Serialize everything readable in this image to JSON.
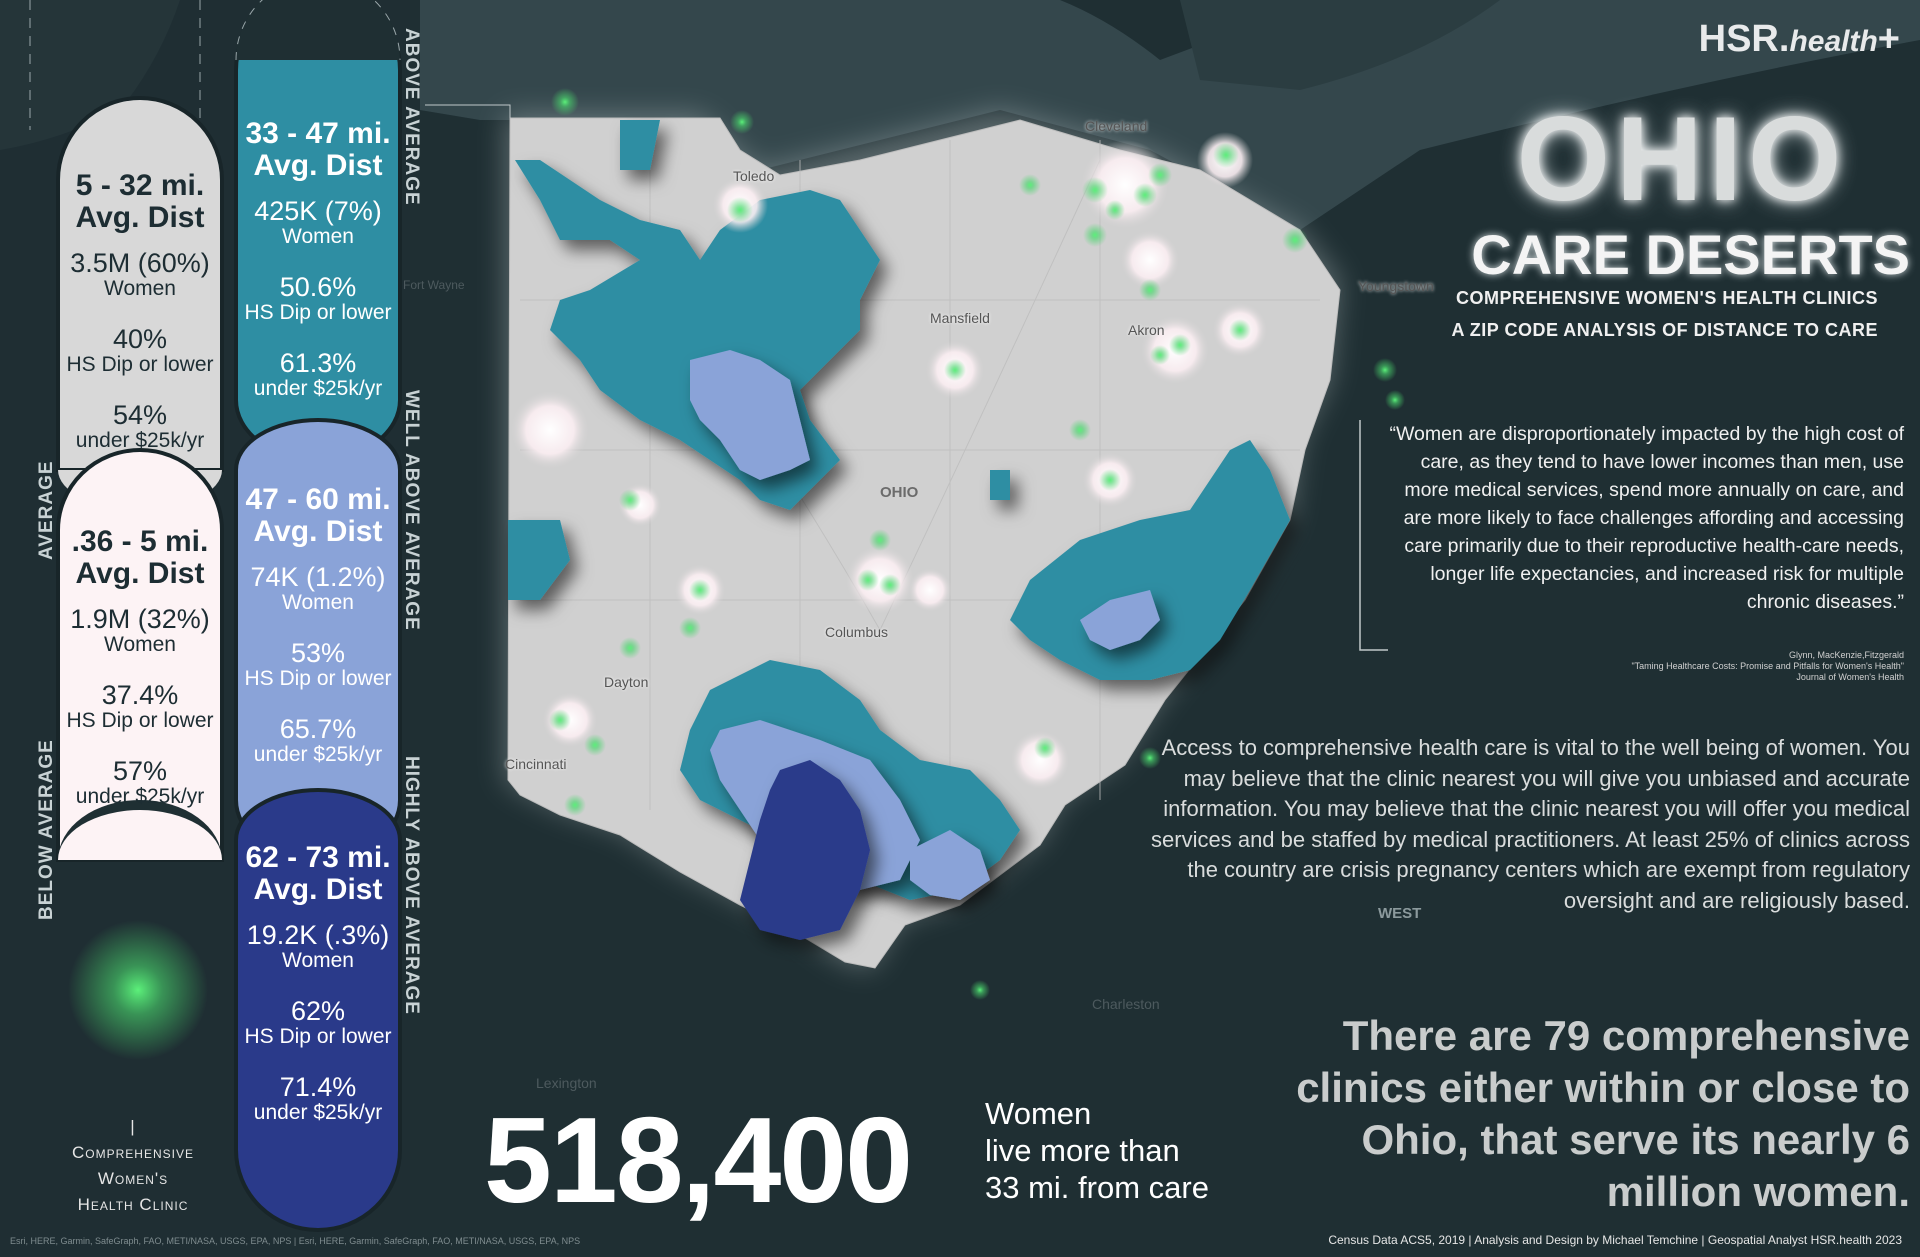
{
  "brand": {
    "name": "HSR.",
    "suffix": "health",
    "plus": "+"
  },
  "title": {
    "state": "OHIO",
    "heading": "CARE DESERTS",
    "sub1": "COMPREHENSIVE WOMEN'S HEALTH CLINICS",
    "sub2": "A ZIP CODE ANALYSIS OF DISTANCE TO CARE"
  },
  "legend": {
    "tiers": [
      {
        "range": "5 - 32 mi.",
        "dist": "Avg. Dist",
        "women": "3.5M (60%)",
        "women_label": "Women",
        "hs": "40%",
        "hs_label": "HS Dip or lower",
        "income": "54%",
        "income_label": "under $25k/yr"
      },
      {
        "range": ".36 - 5 mi.",
        "dist": "Avg. Dist",
        "women": "1.9M (32%)",
        "women_label": "Women",
        "hs": "37.4%",
        "hs_label": "HS Dip or lower",
        "income": "57%",
        "income_label": "under $25k/yr"
      },
      {
        "range": "33 - 47 mi.",
        "dist": "Avg. Dist",
        "women": "425K (7%)",
        "women_label": "Women",
        "hs": "50.6%",
        "hs_label": "HS Dip or lower",
        "income": "61.3%",
        "income_label": "under $25k/yr"
      },
      {
        "range": "47 - 60 mi.",
        "dist": "Avg. Dist",
        "women": "74K (1.2%)",
        "women_label": "Women",
        "hs": "53%",
        "hs_label": "HS Dip or lower",
        "income": "65.7%",
        "income_label": "under $25k/yr"
      },
      {
        "range": "62 - 73 mi.",
        "dist": "Avg. Dist",
        "women": "19.2K (.3%)",
        "women_label": "Women",
        "hs": "62%",
        "hs_label": "HS Dip or lower",
        "income": "71.4%",
        "income_label": "under $25k/yr"
      }
    ],
    "labels": {
      "average": "AVERAGE",
      "below": "BELOW AVERAGE",
      "above": "ABOVE AVERAGE",
      "well_above": "WELL ABOVE AVERAGE",
      "highly_above": "HIGHLY ABOVE AVERAGE"
    },
    "clinic": {
      "line1": "Comprehensive",
      "line2": "Women's",
      "line3": "Health Clinic",
      "marker": "|"
    },
    "colors": {
      "gray": "#d0d0d0",
      "light": "#fdf3f5",
      "teal": "#2e8ea3",
      "lavender": "#8aa3d8",
      "navy": "#2a3a8a",
      "clinic": "#4ad66d"
    }
  },
  "map": {
    "cities": {
      "cleveland": "Cleveland",
      "toledo": "Toledo",
      "youngstown": "Youngstown",
      "akron": "Akron",
      "mansfield": "Mansfield",
      "columbus": "Columbus",
      "dayton": "Dayton",
      "cincinnati": "Cincinnati",
      "charleston": "Charleston",
      "lexington": "Lexington",
      "fort_wayne": "Fort Wayne"
    },
    "state_labels": {
      "ohio": "OHIO",
      "west": "WEST"
    }
  },
  "quote": {
    "text": "“Women are disproportionately impacted by the high cost of care, as they tend to have lower incomes than men, use more medical services, spend more annually on care, and are more likely to face challenges affording and accessing care primarily due to their reproductive health-care needs, longer life expectancies, and increased risk for multiple chronic diseases.”",
    "cite1": "Glynn, MacKenzie,Fitzgerald",
    "cite2": "\"Taming Healthcare Costs: Promise and Pitfalls for Women's Health\"",
    "cite3": "Journal of Women's Health"
  },
  "access": "Access to comprehensive health care is vital to the well being of women. You may believe that the clinic nearest you will give you unbiased and accurate information. You may believe that the clinic nearest you will offer you medical services and be staffed by medical practitioners. At least 25% of clinics across the country are crisis pregnancy centers which are exempt from regulatory oversight and are religiously based.",
  "clinics_note": "There are 79 comprehensive clinics either within or close to Ohio, that serve its nearly 6 million women.",
  "stat": {
    "number": "518,400",
    "line1": "Women",
    "line2": "live more than",
    "line3": "33 mi. from care"
  },
  "footer": "Census Data ACS5, 2019 | Analysis and Design by Michael Temchine | Geospatial Analyst HSR.health 2023",
  "attribution": "Esri, HERE, Garmin, SafeGraph, FAO, METI/NASA, USGS, EPA, NPS | Esri, HERE, Garmin, SafeGraph, FAO, METI/NASA, USGS, EPA, NPS"
}
